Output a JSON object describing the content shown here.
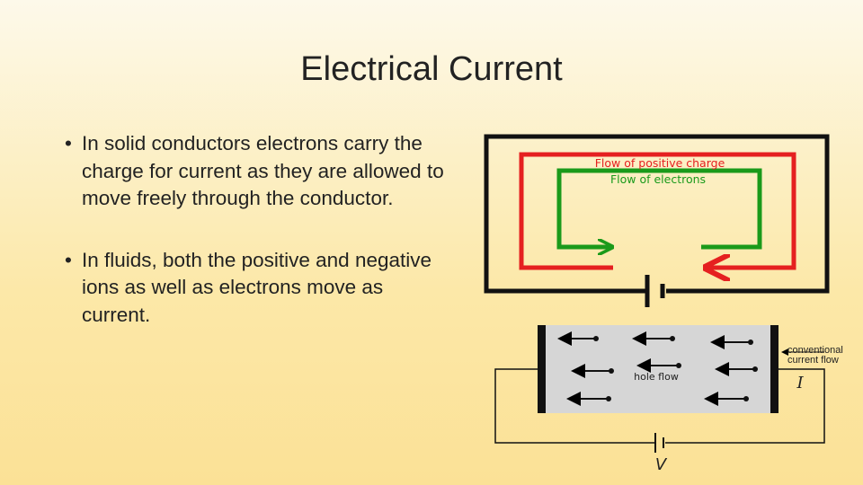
{
  "title": "Electrical Current",
  "bullets": [
    "In solid conductors electrons carry the charge for current as they are allowed to move freely through the conductor.",
    "In fluids, both the positive and negative ions as well as electrons move as current."
  ],
  "diagram_top": {
    "labels": [
      "Flow of positive charge",
      "Flow of electrons"
    ]
  },
  "diagram_bottom": {
    "labels": [
      "conventional current flow",
      "hole flow",
      "I",
      "V"
    ]
  }
}
